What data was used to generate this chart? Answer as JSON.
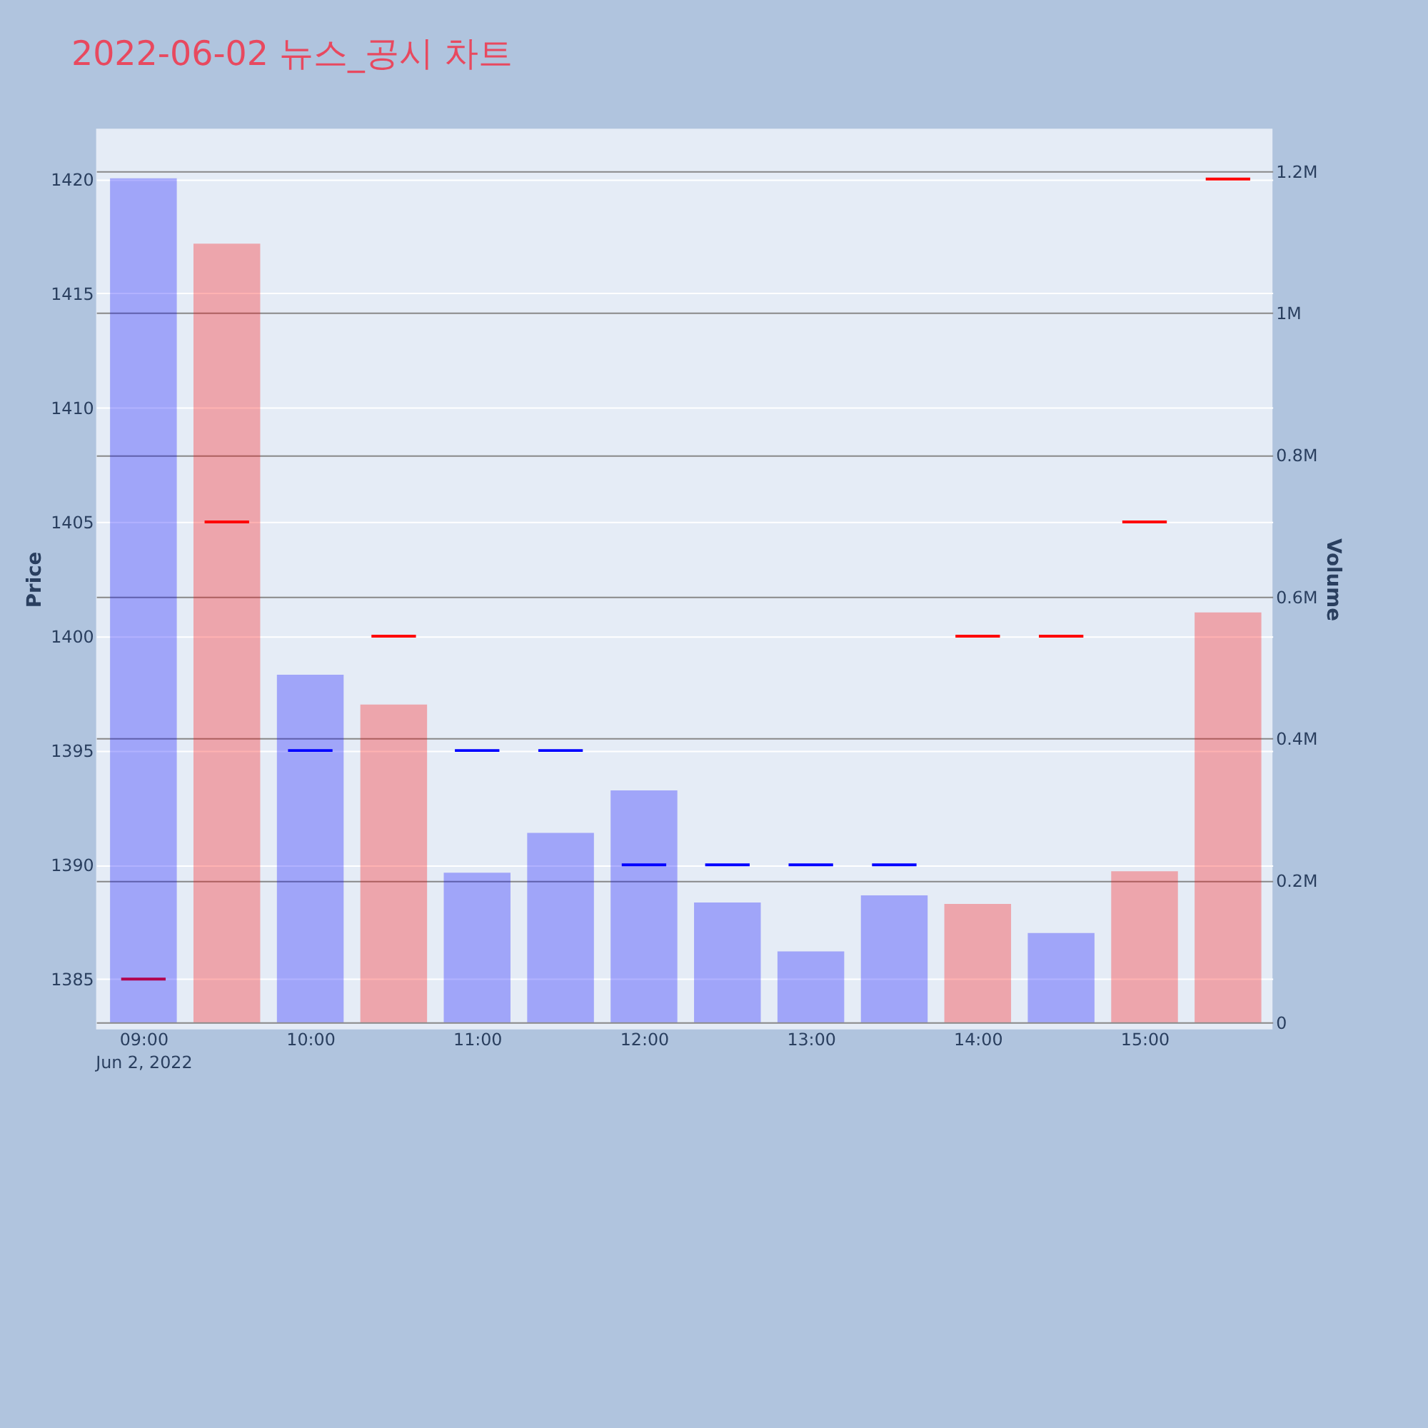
{
  "chart_data": {
    "type": "candlestick",
    "title": "2022-06-02 뉴스_공시 차트",
    "ylabel": "Price",
    "y2label": "Volume",
    "x": [
      "2022-06-02T09:00",
      "2022-06-02T09:30",
      "2022-06-02T10:00",
      "2022-06-02T10:30",
      "2022-06-02T11:00",
      "2022-06-02T11:30",
      "2022-06-02T12:00",
      "2022-06-02T12:30",
      "2022-06-02T13:00",
      "2022-06-02T13:30",
      "2022-06-02T14:00",
      "2022-06-02T14:30",
      "2022-06-02T15:00",
      "2022-06-02T15:30"
    ],
    "series": [
      {
        "type": "bar",
        "axis": "y2",
        "values": [
          1190000,
          1098000,
          490000,
          448000,
          211000,
          267000,
          327000,
          169000,
          100000,
          179000,
          167000,
          126000,
          213000,
          578000
        ],
        "colors": [
          "#0000ff",
          "#ff0000",
          "#0000ff",
          "#ff0000",
          "#0000ff",
          "#0000ff",
          "#0000ff",
          "#0000ff",
          "#0000ff",
          "#0000ff",
          "#ff0000",
          "#0000ff",
          "#ff0000",
          "#ff0000"
        ]
      },
      {
        "type": "candlestick",
        "ohlc": [
          [
            1385,
            1385,
            1385,
            1385
          ],
          [
            1405,
            1405,
            1405,
            1405
          ],
          [
            1395,
            1395,
            1395,
            1395
          ],
          [
            1400,
            1400,
            1400,
            1400
          ],
          [
            1395,
            1395,
            1395,
            1395
          ],
          [
            1395,
            1395,
            1395,
            1395
          ],
          [
            1390,
            1390,
            1390,
            1390
          ],
          [
            1390,
            1390,
            1390,
            1390
          ],
          [
            1390,
            1390,
            1390,
            1390
          ],
          [
            1390,
            1390,
            1390,
            1390
          ],
          [
            1400,
            1400,
            1400,
            1400
          ],
          [
            1400,
            1400,
            1400,
            1400
          ],
          [
            1405,
            1405,
            1405,
            1405
          ],
          [
            1420,
            1420,
            1420,
            1420
          ]
        ],
        "colors": [
          "#ff0000",
          "#ff0000",
          "#0000ff",
          "#ff0000",
          "#0000ff",
          "#0000ff",
          "#0000ff",
          "#0000ff",
          "#0000ff",
          "#0000ff",
          "#ff0000",
          "#ff0000",
          "#ff0000",
          "#ff0000"
        ]
      }
    ],
    "xlim": [
      "2022-06-02T08:43",
      "2022-06-02T15:46"
    ],
    "xticks": [
      {
        "value": "2022-06-02T09:00",
        "label": "09:00\nJun 2, 2022"
      },
      {
        "value": "2022-06-02T10:00",
        "label": "10:00"
      },
      {
        "value": "2022-06-02T11:00",
        "label": "11:00"
      },
      {
        "value": "2022-06-02T12:00",
        "label": "12:00"
      },
      {
        "value": "2022-06-02T13:00",
        "label": "13:00"
      },
      {
        "value": "2022-06-02T14:00",
        "label": "14:00"
      },
      {
        "value": "2022-06-02T15:00",
        "label": "15:00"
      }
    ],
    "ylim": [
      1382.8,
      1422.2
    ],
    "yticks": [
      1385,
      1390,
      1395,
      1400,
      1405,
      1410,
      1415,
      1420
    ],
    "y2lim": [
      -10000,
      1260000
    ],
    "y2ticks": [
      0,
      {
        "value": 200000,
        "label": "0.2M"
      },
      {
        "value": 400000,
        "label": "0.4M"
      },
      {
        "value": 600000,
        "label": "0.6M"
      },
      {
        "value": 800000,
        "label": "0.8M"
      },
      {
        "value": 1000000,
        "label": "1M"
      },
      {
        "value": 1200000,
        "label": "1.2M"
      }
    ],
    "grid": "y"
  }
}
